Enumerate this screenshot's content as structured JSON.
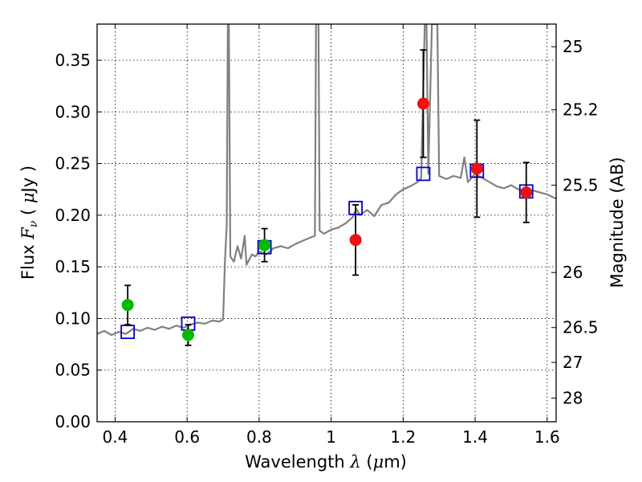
{
  "chart_data": {
    "type": "scatter",
    "title": "",
    "xlabel": {
      "prefix": "Wavelength  ",
      "symbol": "λ",
      "units_open": " (",
      "mu": "μ",
      "units_close": "m)"
    },
    "ylabel": {
      "prefix": "Flux  ",
      "symbol": "F",
      "sub": "ν",
      "units_open": "  ( ",
      "mu": "μ",
      "units_close": "Jy )"
    },
    "y2label": "Magnitude (AB)",
    "xlim": [
      0.35,
      1.625
    ],
    "ylim": [
      0.0,
      0.385
    ],
    "grid": true,
    "legend": "none",
    "x_ticks": [
      {
        "value": 0.4,
        "label": "0.4"
      },
      {
        "value": 0.6,
        "label": "0.6"
      },
      {
        "value": 0.8,
        "label": "0.8"
      },
      {
        "value": 1.0,
        "label": "1"
      },
      {
        "value": 1.2,
        "label": "1.2"
      },
      {
        "value": 1.4,
        "label": "1.4"
      },
      {
        "value": 1.6,
        "label": "1.6"
      }
    ],
    "y_ticks": [
      {
        "value": 0.0,
        "label": "0.00"
      },
      {
        "value": 0.05,
        "label": "0.05"
      },
      {
        "value": 0.1,
        "label": "0.10"
      },
      {
        "value": 0.15,
        "label": "0.15"
      },
      {
        "value": 0.2,
        "label": "0.20"
      },
      {
        "value": 0.25,
        "label": "0.25"
      },
      {
        "value": 0.3,
        "label": "0.30"
      },
      {
        "value": 0.35,
        "label": "0.35"
      }
    ],
    "y2_ticks": [
      {
        "flux": 0.3631,
        "label": "25"
      },
      {
        "flux": 0.302,
        "label": "25.2"
      },
      {
        "flux": 0.2291,
        "label": "25.5"
      },
      {
        "flux": 0.1445,
        "label": "26"
      },
      {
        "flux": 0.0912,
        "label": "26.5"
      },
      {
        "flux": 0.0575,
        "label": "27"
      },
      {
        "flux": 0.0229,
        "label": "28"
      }
    ],
    "series": [
      {
        "kind": "line",
        "color": "#808080",
        "points": [
          [
            0.35,
            0.085
          ],
          [
            0.37,
            0.088
          ],
          [
            0.39,
            0.084
          ],
          [
            0.41,
            0.087
          ],
          [
            0.43,
            0.085
          ],
          [
            0.45,
            0.09
          ],
          [
            0.47,
            0.088
          ],
          [
            0.49,
            0.091
          ],
          [
            0.51,
            0.089
          ],
          [
            0.53,
            0.092
          ],
          [
            0.55,
            0.09
          ],
          [
            0.57,
            0.093
          ],
          [
            0.59,
            0.091
          ],
          [
            0.61,
            0.094
          ],
          [
            0.63,
            0.096
          ],
          [
            0.65,
            0.095
          ],
          [
            0.67,
            0.098
          ],
          [
            0.69,
            0.097
          ],
          [
            0.7,
            0.099
          ],
          [
            0.705,
            0.155
          ],
          [
            0.71,
            0.19
          ],
          [
            0.713,
            0.385
          ],
          [
            0.716,
            0.385
          ],
          [
            0.72,
            0.16
          ],
          [
            0.73,
            0.155
          ],
          [
            0.74,
            0.17
          ],
          [
            0.75,
            0.158
          ],
          [
            0.76,
            0.18
          ],
          [
            0.765,
            0.152
          ],
          [
            0.78,
            0.162
          ],
          [
            0.79,
            0.16
          ],
          [
            0.8,
            0.165
          ],
          [
            0.82,
            0.162
          ],
          [
            0.84,
            0.168
          ],
          [
            0.86,
            0.17
          ],
          [
            0.88,
            0.168
          ],
          [
            0.9,
            0.172
          ],
          [
            0.92,
            0.175
          ],
          [
            0.94,
            0.178
          ],
          [
            0.955,
            0.18
          ],
          [
            0.958,
            0.385
          ],
          [
            0.965,
            0.385
          ],
          [
            0.968,
            0.185
          ],
          [
            0.98,
            0.182
          ],
          [
            1.0,
            0.186
          ],
          [
            1.02,
            0.188
          ],
          [
            1.04,
            0.192
          ],
          [
            1.06,
            0.198
          ],
          [
            1.07,
            0.206
          ],
          [
            1.08,
            0.2
          ],
          [
            1.1,
            0.205
          ],
          [
            1.12,
            0.199
          ],
          [
            1.14,
            0.21
          ],
          [
            1.16,
            0.212
          ],
          [
            1.18,
            0.22
          ],
          [
            1.2,
            0.225
          ],
          [
            1.22,
            0.228
          ],
          [
            1.24,
            0.232
          ],
          [
            1.25,
            0.236
          ],
          [
            1.26,
            0.385
          ],
          [
            1.265,
            0.385
          ],
          [
            1.27,
            0.24
          ],
          [
            1.28,
            0.385
          ],
          [
            1.295,
            0.385
          ],
          [
            1.3,
            0.238
          ],
          [
            1.32,
            0.235
          ],
          [
            1.34,
            0.238
          ],
          [
            1.36,
            0.236
          ],
          [
            1.37,
            0.256
          ],
          [
            1.38,
            0.232
          ],
          [
            1.4,
            0.24
          ],
          [
            1.42,
            0.236
          ],
          [
            1.44,
            0.232
          ],
          [
            1.46,
            0.228
          ],
          [
            1.48,
            0.226
          ],
          [
            1.5,
            0.229
          ],
          [
            1.52,
            0.225
          ],
          [
            1.54,
            0.223
          ],
          [
            1.56,
            0.224
          ],
          [
            1.58,
            0.222
          ],
          [
            1.6,
            0.22
          ],
          [
            1.625,
            0.216
          ]
        ]
      },
      {
        "kind": "model",
        "marker": "open-square",
        "color": "#0000cc",
        "x": [
          0.435,
          0.603,
          0.815,
          1.068,
          1.256,
          1.405,
          1.542
        ],
        "y": [
          0.087,
          0.095,
          0.169,
          0.207,
          0.24,
          0.243,
          0.223
        ]
      },
      {
        "kind": "observed",
        "marker": "circle",
        "color": "#00bb00",
        "x": [
          0.435,
          0.603,
          0.815
        ],
        "y": [
          0.113,
          0.084,
          0.171
        ],
        "err": [
          0.019,
          0.01,
          0.016
        ]
      },
      {
        "kind": "observed",
        "marker": "circle",
        "color": "#ee1111",
        "x": [
          1.068,
          1.256,
          1.405,
          1.542
        ],
        "y": [
          0.176,
          0.308,
          0.245,
          0.222
        ],
        "err": [
          0.034,
          0.052,
          0.047,
          0.029
        ]
      }
    ]
  }
}
